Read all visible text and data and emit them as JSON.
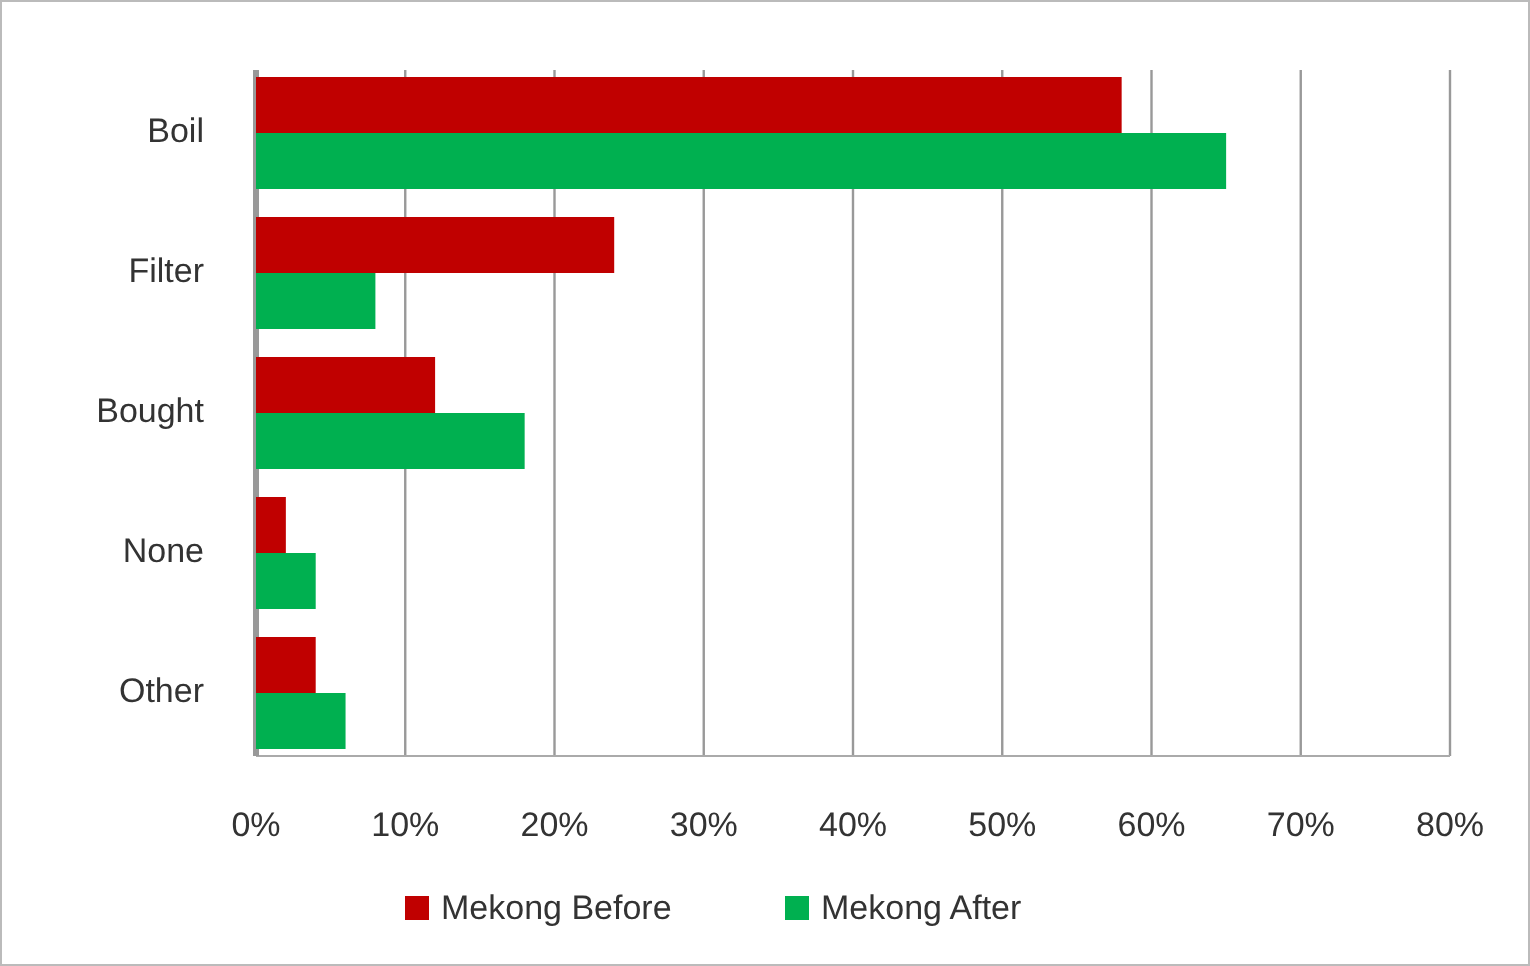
{
  "chart_data": {
    "type": "bar",
    "orientation": "horizontal",
    "categories": [
      "Boil",
      "Filter",
      "Bought",
      "None",
      "Other"
    ],
    "series": [
      {
        "name": "Mekong Before",
        "color": "#c00000",
        "values": [
          58,
          24,
          12,
          2,
          4
        ]
      },
      {
        "name": "Mekong After",
        "color": "#00b050",
        "values": [
          65,
          8,
          18,
          4,
          6
        ]
      }
    ],
    "xlim": [
      0,
      80
    ],
    "xticks": [
      {
        "value": 0,
        "label": "0%"
      },
      {
        "value": 10,
        "label": "10%"
      },
      {
        "value": 20,
        "label": "20%"
      },
      {
        "value": 30,
        "label": "30%"
      },
      {
        "value": 40,
        "label": "40%"
      },
      {
        "value": 50,
        "label": "50%"
      },
      {
        "value": 60,
        "label": "60%"
      },
      {
        "value": 70,
        "label": "70%"
      },
      {
        "value": 80,
        "label": "80%"
      }
    ],
    "grid": "x",
    "legend": "bottom"
  }
}
